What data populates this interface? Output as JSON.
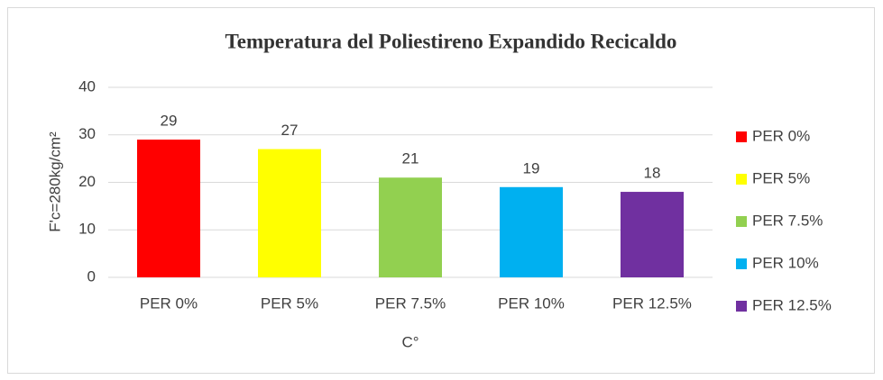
{
  "chart_data": {
    "type": "bar",
    "title": "Temperatura del Poliestireno Expandido Recicaldo",
    "x_label": "C°",
    "y_label": "F'c=280kg/cm²",
    "categories": [
      "PER 0%",
      "PER 5%",
      "PER 7.5%",
      "PER 10%",
      "PER 12.5%"
    ],
    "values": [
      29,
      27,
      21,
      19,
      18
    ],
    "colors": [
      "#ff0000",
      "#ffff00",
      "#92d050",
      "#00b0f0",
      "#7030a0"
    ],
    "ylim": [
      0,
      40
    ],
    "yticks": [
      0,
      10,
      20,
      30,
      40
    ],
    "grid": true,
    "legend": "right"
  }
}
